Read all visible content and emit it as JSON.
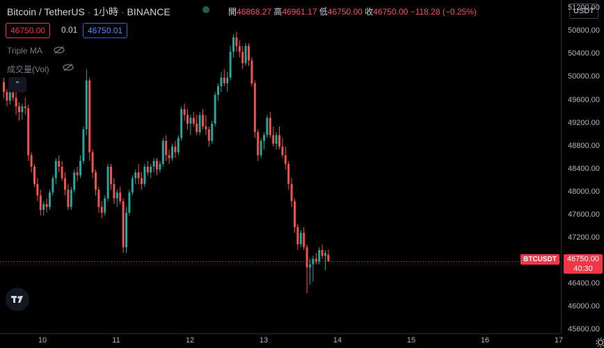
{
  "header": {
    "symbol": "Bitcoin / TetherUS",
    "interval": "1小時",
    "exchange": "BINANCE",
    "ohlc": {
      "open_label": "開",
      "open": "46868.27",
      "high_label": "高",
      "high": "46961.17",
      "low_label": "低",
      "low": "46750.00",
      "close_label": "收",
      "close": "46750.00",
      "change": "−118.28 (−0.25%)"
    }
  },
  "trade": {
    "sell_price": "46750.00",
    "spread": "0.01",
    "buy_price": "46750.01"
  },
  "indicators": [
    {
      "name": "Triple MA"
    },
    {
      "name": "成交量(Vol)"
    }
  ],
  "price_axis": {
    "currency": "USDT",
    "ticks": [
      "51200.00",
      "50800.00",
      "50400.00",
      "50000.00",
      "49600.00",
      "49200.00",
      "48800.00",
      "48400.00",
      "48000.00",
      "47600.00",
      "47200.00",
      "46750.00",
      "46400.00",
      "46000.00",
      "45600.00"
    ],
    "current": {
      "symbol_tag": "BTCUSDT",
      "price": "46750.00",
      "countdown": "40:30"
    }
  },
  "time_axis": {
    "ticks": [
      "10",
      "11",
      "12",
      "13",
      "14",
      "15",
      "16",
      "17"
    ]
  },
  "colors": {
    "up": "#26a69a",
    "down": "#ef5350",
    "background": "#000000"
  },
  "chart_data": {
    "type": "candlestick",
    "ylim": [
      45500,
      51300
    ],
    "x_ticks": [
      "10",
      "11",
      "12",
      "13",
      "14",
      "15",
      "16",
      "17"
    ],
    "candles": [
      [
        49870,
        49950,
        49600,
        49700
      ],
      [
        49700,
        49750,
        49450,
        49550
      ],
      [
        49550,
        49900,
        49480,
        49850
      ],
      [
        49850,
        49920,
        49550,
        49600
      ],
      [
        49600,
        49700,
        49300,
        49450
      ],
      [
        49450,
        49520,
        49200,
        49350
      ],
      [
        49350,
        49500,
        49220,
        49450
      ],
      [
        49450,
        49600,
        49300,
        49420
      ],
      [
        49420,
        49480,
        48500,
        48600
      ],
      [
        48600,
        48650,
        48300,
        48400
      ],
      [
        48400,
        48450,
        48050,
        48100
      ],
      [
        48100,
        48200,
        47800,
        47900
      ],
      [
        47900,
        48000,
        47550,
        47650
      ],
      [
        47650,
        47800,
        47550,
        47750
      ],
      [
        47750,
        47850,
        47600,
        47700
      ],
      [
        47700,
        48000,
        47650,
        47950
      ],
      [
        47950,
        48250,
        47900,
        48200
      ],
      [
        48200,
        48550,
        48100,
        48500
      ],
      [
        48500,
        48600,
        48300,
        48400
      ],
      [
        48400,
        48500,
        48150,
        48200
      ],
      [
        48200,
        48300,
        47900,
        48000
      ],
      [
        48000,
        48100,
        47650,
        47700
      ],
      [
        47700,
        48050,
        47650,
        48000
      ],
      [
        48000,
        48350,
        47950,
        48300
      ],
      [
        48300,
        48400,
        48150,
        48250
      ],
      [
        48250,
        48600,
        48200,
        48500
      ],
      [
        48500,
        49100,
        48450,
        49050
      ],
      [
        49050,
        50100,
        48950,
        49900
      ],
      [
        49900,
        49950,
        48500,
        48650
      ],
      [
        48650,
        48700,
        48200,
        48300
      ],
      [
        48300,
        48350,
        47900,
        48000
      ],
      [
        48000,
        48050,
        47600,
        47700
      ],
      [
        47700,
        47800,
        47500,
        47600
      ],
      [
        47600,
        47900,
        47550,
        47850
      ],
      [
        47850,
        48450,
        47800,
        48400
      ],
      [
        48400,
        48450,
        48000,
        48100
      ],
      [
        48100,
        48200,
        47750,
        47850
      ],
      [
        47850,
        48000,
        47700,
        47950
      ],
      [
        47950,
        48050,
        47750,
        47800
      ],
      [
        47800,
        47850,
        46900,
        47000
      ],
      [
        47000,
        47700,
        46900,
        47600
      ],
      [
        47600,
        48000,
        47550,
        47950
      ],
      [
        47950,
        48250,
        47900,
        48200
      ],
      [
        48200,
        48350,
        48100,
        48300
      ],
      [
        48300,
        48450,
        48100,
        48200
      ],
      [
        48200,
        48300,
        48000,
        48100
      ],
      [
        48100,
        48450,
        48050,
        48400
      ],
      [
        48400,
        48500,
        48250,
        48300
      ],
      [
        48300,
        48450,
        48200,
        48400
      ],
      [
        48400,
        48550,
        48300,
        48500
      ],
      [
        48500,
        48550,
        48250,
        48350
      ],
      [
        48350,
        48500,
        48300,
        48450
      ],
      [
        48450,
        48900,
        48400,
        48850
      ],
      [
        48850,
        48950,
        48500,
        48600
      ],
      [
        48600,
        48700,
        48450,
        48550
      ],
      [
        48550,
        48800,
        48500,
        48750
      ],
      [
        48750,
        48850,
        48550,
        48650
      ],
      [
        48650,
        48950,
        48600,
        48900
      ],
      [
        48900,
        49450,
        48850,
        49400
      ],
      [
        49400,
        49500,
        49200,
        49300
      ],
      [
        49300,
        49400,
        49050,
        49150
      ],
      [
        49150,
        49300,
        48950,
        49250
      ],
      [
        49250,
        49350,
        49100,
        49150
      ],
      [
        49150,
        49300,
        48950,
        49000
      ],
      [
        49000,
        49350,
        48950,
        49300
      ],
      [
        49300,
        49400,
        49050,
        49100
      ],
      [
        49100,
        49300,
        48950,
        49050
      ],
      [
        49050,
        49100,
        48750,
        48850
      ],
      [
        48850,
        49200,
        48800,
        49150
      ],
      [
        49150,
        49700,
        49100,
        49650
      ],
      [
        49650,
        49850,
        49550,
        49800
      ],
      [
        49800,
        50050,
        49700,
        49950
      ],
      [
        49950,
        50100,
        49800,
        49850
      ],
      [
        49850,
        50050,
        49700,
        49950
      ],
      [
        49950,
        50500,
        49900,
        50400
      ],
      [
        50400,
        50700,
        50300,
        50650
      ],
      [
        50650,
        50750,
        50400,
        50500
      ],
      [
        50500,
        50600,
        50300,
        50400
      ],
      [
        50400,
        50500,
        50100,
        50200
      ],
      [
        50200,
        50550,
        50150,
        50500
      ],
      [
        50500,
        50550,
        50150,
        50250
      ],
      [
        50250,
        50300,
        49800,
        49850
      ],
      [
        49850,
        49900,
        48900,
        49000
      ],
      [
        49000,
        49050,
        48500,
        48600
      ],
      [
        48600,
        48900,
        48550,
        48850
      ],
      [
        48850,
        49000,
        48700,
        48950
      ],
      [
        48950,
        49300,
        48900,
        49250
      ],
      [
        49250,
        49350,
        48900,
        48950
      ],
      [
        48950,
        49100,
        48750,
        48800
      ],
      [
        48800,
        49000,
        48700,
        48950
      ],
      [
        48950,
        49100,
        48700,
        48750
      ],
      [
        48750,
        48900,
        48550,
        48600
      ],
      [
        48600,
        48750,
        48350,
        48450
      ],
      [
        48450,
        48500,
        48000,
        48100
      ],
      [
        48100,
        48200,
        47700,
        47800
      ],
      [
        47800,
        47850,
        47250,
        47350
      ],
      [
        47350,
        47400,
        46950,
        47050
      ],
      [
        47050,
        47300,
        47000,
        47250
      ],
      [
        47250,
        47350,
        46950,
        47000
      ],
      [
        47000,
        47050,
        46200,
        46650
      ],
      [
        46650,
        46800,
        46350,
        46700
      ],
      [
        46700,
        46850,
        46400,
        46800
      ],
      [
        46800,
        46900,
        46700,
        46750
      ],
      [
        46750,
        47000,
        46700,
        46950
      ],
      [
        46950,
        47050,
        46800,
        46850
      ],
      [
        46850,
        46950,
        46600,
        46900
      ],
      [
        46868,
        46961,
        46750,
        46750
      ]
    ]
  }
}
